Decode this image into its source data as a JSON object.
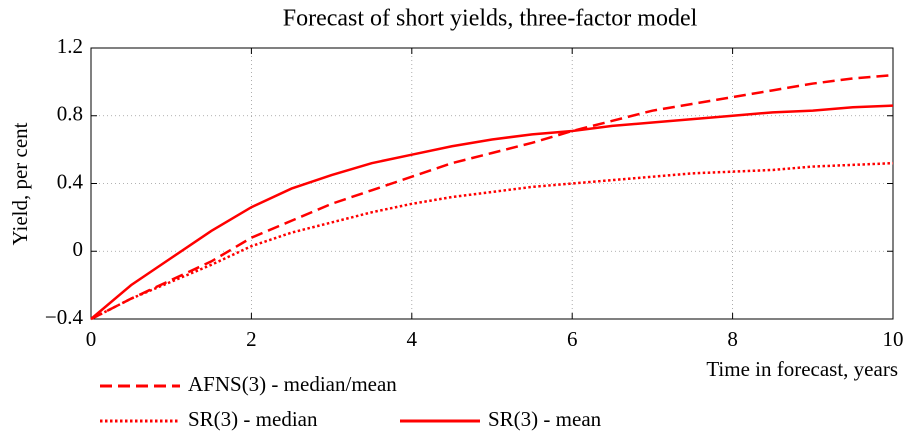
{
  "chart_data": {
    "type": "line",
    "title": "Forecast of short yields, three-factor model",
    "y_label": "Yield, per cent",
    "x_label": "Time in forecast, years",
    "x": [
      0,
      0.5,
      1,
      1.5,
      2,
      2.5,
      3,
      3.5,
      4,
      4.5,
      5,
      5.5,
      6,
      6.5,
      7,
      7.5,
      8,
      8.5,
      9,
      9.5,
      10
    ],
    "series": [
      {
        "name": "AFNS(3) - median/mean",
        "color": "#ff0000",
        "dash": "dashed",
        "values": [
          -0.4,
          -0.28,
          -0.17,
          -0.06,
          0.08,
          0.18,
          0.28,
          0.36,
          0.44,
          0.52,
          0.58,
          0.64,
          0.71,
          0.77,
          0.83,
          0.87,
          0.91,
          0.95,
          0.99,
          1.02,
          1.04
        ]
      },
      {
        "name": "SR(3) - median",
        "color": "#ff0000",
        "dash": "dotted",
        "values": [
          -0.4,
          -0.28,
          -0.18,
          -0.08,
          0.03,
          0.11,
          0.17,
          0.23,
          0.28,
          0.32,
          0.35,
          0.38,
          0.4,
          0.42,
          0.44,
          0.46,
          0.47,
          0.48,
          0.5,
          0.51,
          0.52
        ]
      },
      {
        "name": "SR(3) - mean",
        "color": "#ff0000",
        "dash": "solid",
        "values": [
          -0.4,
          -0.2,
          -0.04,
          0.12,
          0.26,
          0.37,
          0.45,
          0.52,
          0.57,
          0.62,
          0.66,
          0.69,
          0.71,
          0.74,
          0.76,
          0.78,
          0.8,
          0.82,
          0.83,
          0.85,
          0.86
        ]
      }
    ],
    "xlim": [
      0,
      10
    ],
    "xticks": [
      0,
      2,
      4,
      6,
      8,
      10
    ],
    "ylim": [
      -0.4,
      1.2
    ],
    "yticks": [
      {
        "value": -0.4,
        "label": "−0.4"
      },
      0,
      0.4,
      0.8,
      1.2
    ],
    "grid": true
  }
}
